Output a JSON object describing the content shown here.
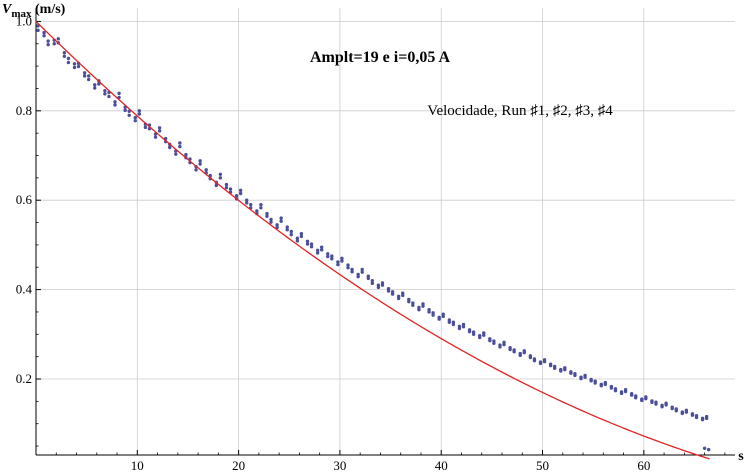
{
  "chart_data": {
    "type": "scatter",
    "title": "Amplt=19 e i=0,05 A",
    "legend": "Velocidade, Run ♯1, ♯2, ♯3, ♯4",
    "legend_position": "top-right",
    "ylabel_main": "V",
    "ylabel_sub": "max",
    "ylabel_unit": " (m/s)",
    "xlabel": "s",
    "xlim": [
      0,
      69
    ],
    "ylim": [
      0.03,
      1.03
    ],
    "xticks": [
      10,
      20,
      30,
      40,
      50,
      60
    ],
    "yticks": [
      0.2,
      0.4,
      0.6,
      0.8,
      1.0
    ],
    "xtick_labels": [
      "10",
      "20",
      "30",
      "40",
      "50",
      "60"
    ],
    "ytick_labels": [
      "0.2",
      "0.4",
      "0.6",
      "0.8",
      "1.0"
    ],
    "grid": true,
    "colors": {
      "points": "#4b4f9a",
      "fit": "#e02424",
      "grid": "#cccccc"
    },
    "series": [
      {
        "values_x": [
          0.2,
          1.2,
          2.2,
          3.2,
          4.2,
          5.2,
          6.2,
          7.2,
          8.2,
          9.2,
          10.2,
          11.2,
          12.2,
          13.2,
          14.2,
          15.2,
          16.2,
          17.2,
          18.2,
          19.2,
          20.2,
          21.2,
          22.2,
          23.2,
          24.2,
          25.2,
          26.2,
          27.2,
          28.2,
          29.2,
          30.2,
          31.2,
          32.2,
          33.2,
          34.2,
          35.2,
          36.2,
          37.2,
          38.2,
          39.2,
          40.2,
          41.2,
          42.2,
          43.2,
          44.2,
          45.2,
          46.2,
          47.2,
          48.2,
          49.2,
          50.2,
          51.2,
          52.2,
          53.2,
          54.2,
          55.2,
          56.2,
          57.2,
          58.2,
          59.2,
          60.2,
          61.2,
          62.2,
          63.2,
          64.2,
          65.2,
          66.2
        ],
        "values_y": [
          0.99,
          0.956,
          0.961,
          0.917,
          0.906,
          0.878,
          0.867,
          0.841,
          0.839,
          0.799,
          0.8,
          0.768,
          0.762,
          0.725,
          0.728,
          0.692,
          0.688,
          0.655,
          0.658,
          0.625,
          0.622,
          0.59,
          0.59,
          0.557,
          0.56,
          0.53,
          0.525,
          0.502,
          0.495,
          0.475,
          0.47,
          0.445,
          0.445,
          0.42,
          0.415,
          0.395,
          0.392,
          0.37,
          0.368,
          0.348,
          0.345,
          0.327,
          0.322,
          0.305,
          0.303,
          0.285,
          0.282,
          0.265,
          0.263,
          0.245,
          0.243,
          0.228,
          0.225,
          0.212,
          0.208,
          0.195,
          0.192,
          0.178,
          0.176,
          0.162,
          0.16,
          0.148,
          0.146,
          0.133,
          0.13,
          0.118,
          0.116
        ]
      },
      {
        "values_x": [
          0.2,
          1.2,
          2.2,
          3.2,
          4.2,
          5.2,
          6.2,
          7.2,
          8.2,
          9.2,
          10.2,
          11.2,
          12.2,
          13.2,
          14.2,
          15.2,
          16.2,
          17.2,
          18.2,
          19.2,
          20.2,
          21.2,
          22.2,
          23.2,
          24.2,
          25.2,
          26.2,
          27.2,
          28.2,
          29.2,
          30.2,
          31.2,
          32.2,
          33.2,
          34.2,
          35.2,
          36.2,
          37.2,
          38.2,
          39.2,
          40.2,
          41.2,
          42.2,
          43.2,
          44.2,
          45.2,
          46.2,
          47.2,
          48.2,
          49.2,
          50.2,
          51.2,
          52.2,
          53.2,
          54.2,
          55.2,
          56.2,
          57.2,
          58.2,
          59.2,
          60.2,
          61.2,
          62.2,
          63.2,
          64.2,
          65.2,
          66.2
        ],
        "values_y": [
          0.98,
          0.948,
          0.952,
          0.908,
          0.899,
          0.87,
          0.86,
          0.832,
          0.83,
          0.79,
          0.793,
          0.76,
          0.755,
          0.718,
          0.72,
          0.684,
          0.681,
          0.648,
          0.65,
          0.618,
          0.615,
          0.583,
          0.583,
          0.551,
          0.553,
          0.523,
          0.519,
          0.496,
          0.489,
          0.469,
          0.464,
          0.44,
          0.439,
          0.414,
          0.41,
          0.39,
          0.387,
          0.365,
          0.363,
          0.343,
          0.34,
          0.322,
          0.317,
          0.3,
          0.298,
          0.28,
          0.277,
          0.261,
          0.259,
          0.241,
          0.239,
          0.224,
          0.221,
          0.208,
          0.204,
          0.191,
          0.188,
          0.174,
          0.172,
          0.158,
          0.156,
          0.144,
          0.142,
          0.129,
          0.126,
          0.114,
          0.112
        ]
      },
      {
        "values_x": [
          0.8,
          1.8,
          2.8,
          3.8,
          4.8,
          5.8,
          6.8,
          7.8,
          8.8,
          9.8,
          10.8,
          11.8,
          12.8,
          13.8,
          14.8,
          15.8,
          16.8,
          17.8,
          18.8,
          19.8,
          20.8,
          21.8,
          22.8,
          23.8,
          24.8,
          25.8,
          26.8,
          27.8,
          28.8,
          29.8,
          30.8,
          31.8,
          32.8,
          33.8,
          34.8,
          35.8,
          36.8,
          37.8,
          38.8,
          39.8,
          40.8,
          41.8,
          42.8,
          43.8,
          44.8,
          45.8,
          46.8,
          47.8,
          48.8,
          49.8,
          50.8,
          51.8,
          52.8,
          53.8,
          54.8,
          55.8,
          56.8,
          57.8,
          58.8,
          59.8,
          60.8,
          61.8,
          62.8,
          63.8,
          64.8,
          65.8,
          66.0
        ],
        "values_y": [
          0.975,
          0.958,
          0.93,
          0.905,
          0.885,
          0.858,
          0.845,
          0.82,
          0.808,
          0.785,
          0.77,
          0.748,
          0.738,
          0.71,
          0.702,
          0.675,
          0.668,
          0.64,
          0.635,
          0.61,
          0.6,
          0.576,
          0.57,
          0.545,
          0.54,
          0.515,
          0.508,
          0.488,
          0.48,
          0.462,
          0.455,
          0.434,
          0.43,
          0.41,
          0.402,
          0.385,
          0.378,
          0.36,
          0.355,
          0.338,
          0.332,
          0.318,
          0.31,
          0.297,
          0.29,
          0.276,
          0.27,
          0.257,
          0.252,
          0.238,
          0.233,
          0.221,
          0.216,
          0.204,
          0.199,
          0.188,
          0.183,
          0.171,
          0.167,
          0.155,
          0.151,
          0.141,
          0.137,
          0.126,
          0.122,
          0.112,
          0.045
        ]
      },
      {
        "values_x": [
          0.8,
          1.8,
          2.8,
          3.8,
          4.8,
          5.8,
          6.8,
          7.8,
          8.8,
          9.8,
          10.8,
          11.8,
          12.8,
          13.8,
          14.8,
          15.8,
          16.8,
          17.8,
          18.8,
          19.8,
          20.8,
          21.8,
          22.8,
          23.8,
          24.8,
          25.8,
          26.8,
          27.8,
          28.8,
          29.8,
          30.8,
          31.8,
          32.8,
          33.8,
          34.8,
          35.8,
          36.8,
          37.8,
          38.8,
          39.8,
          40.8,
          41.8,
          42.8,
          43.8,
          44.8,
          45.8,
          46.8,
          47.8,
          48.8,
          49.8,
          50.8,
          51.8,
          52.8,
          53.8,
          54.8,
          55.8,
          56.8,
          57.8,
          58.8,
          59.8,
          60.8,
          61.8,
          62.8,
          63.8,
          64.8,
          65.8,
          66.4
        ],
        "values_y": [
          0.968,
          0.95,
          0.922,
          0.897,
          0.878,
          0.851,
          0.838,
          0.813,
          0.801,
          0.778,
          0.763,
          0.741,
          0.731,
          0.703,
          0.695,
          0.668,
          0.661,
          0.633,
          0.628,
          0.603,
          0.594,
          0.57,
          0.564,
          0.539,
          0.534,
          0.509,
          0.502,
          0.482,
          0.474,
          0.456,
          0.449,
          0.429,
          0.425,
          0.405,
          0.397,
          0.38,
          0.373,
          0.355,
          0.35,
          0.334,
          0.327,
          0.313,
          0.306,
          0.293,
          0.286,
          0.272,
          0.266,
          0.253,
          0.248,
          0.235,
          0.23,
          0.218,
          0.213,
          0.201,
          0.196,
          0.185,
          0.18,
          0.168,
          0.164,
          0.152,
          0.148,
          0.138,
          0.134,
          0.123,
          0.119,
          0.109,
          0.042
        ]
      }
    ],
    "fit": {
      "type": "line",
      "a": 1.0,
      "b": -0.0223,
      "c": 0.000114,
      "x_range": [
        0,
        66.5
      ]
    }
  }
}
